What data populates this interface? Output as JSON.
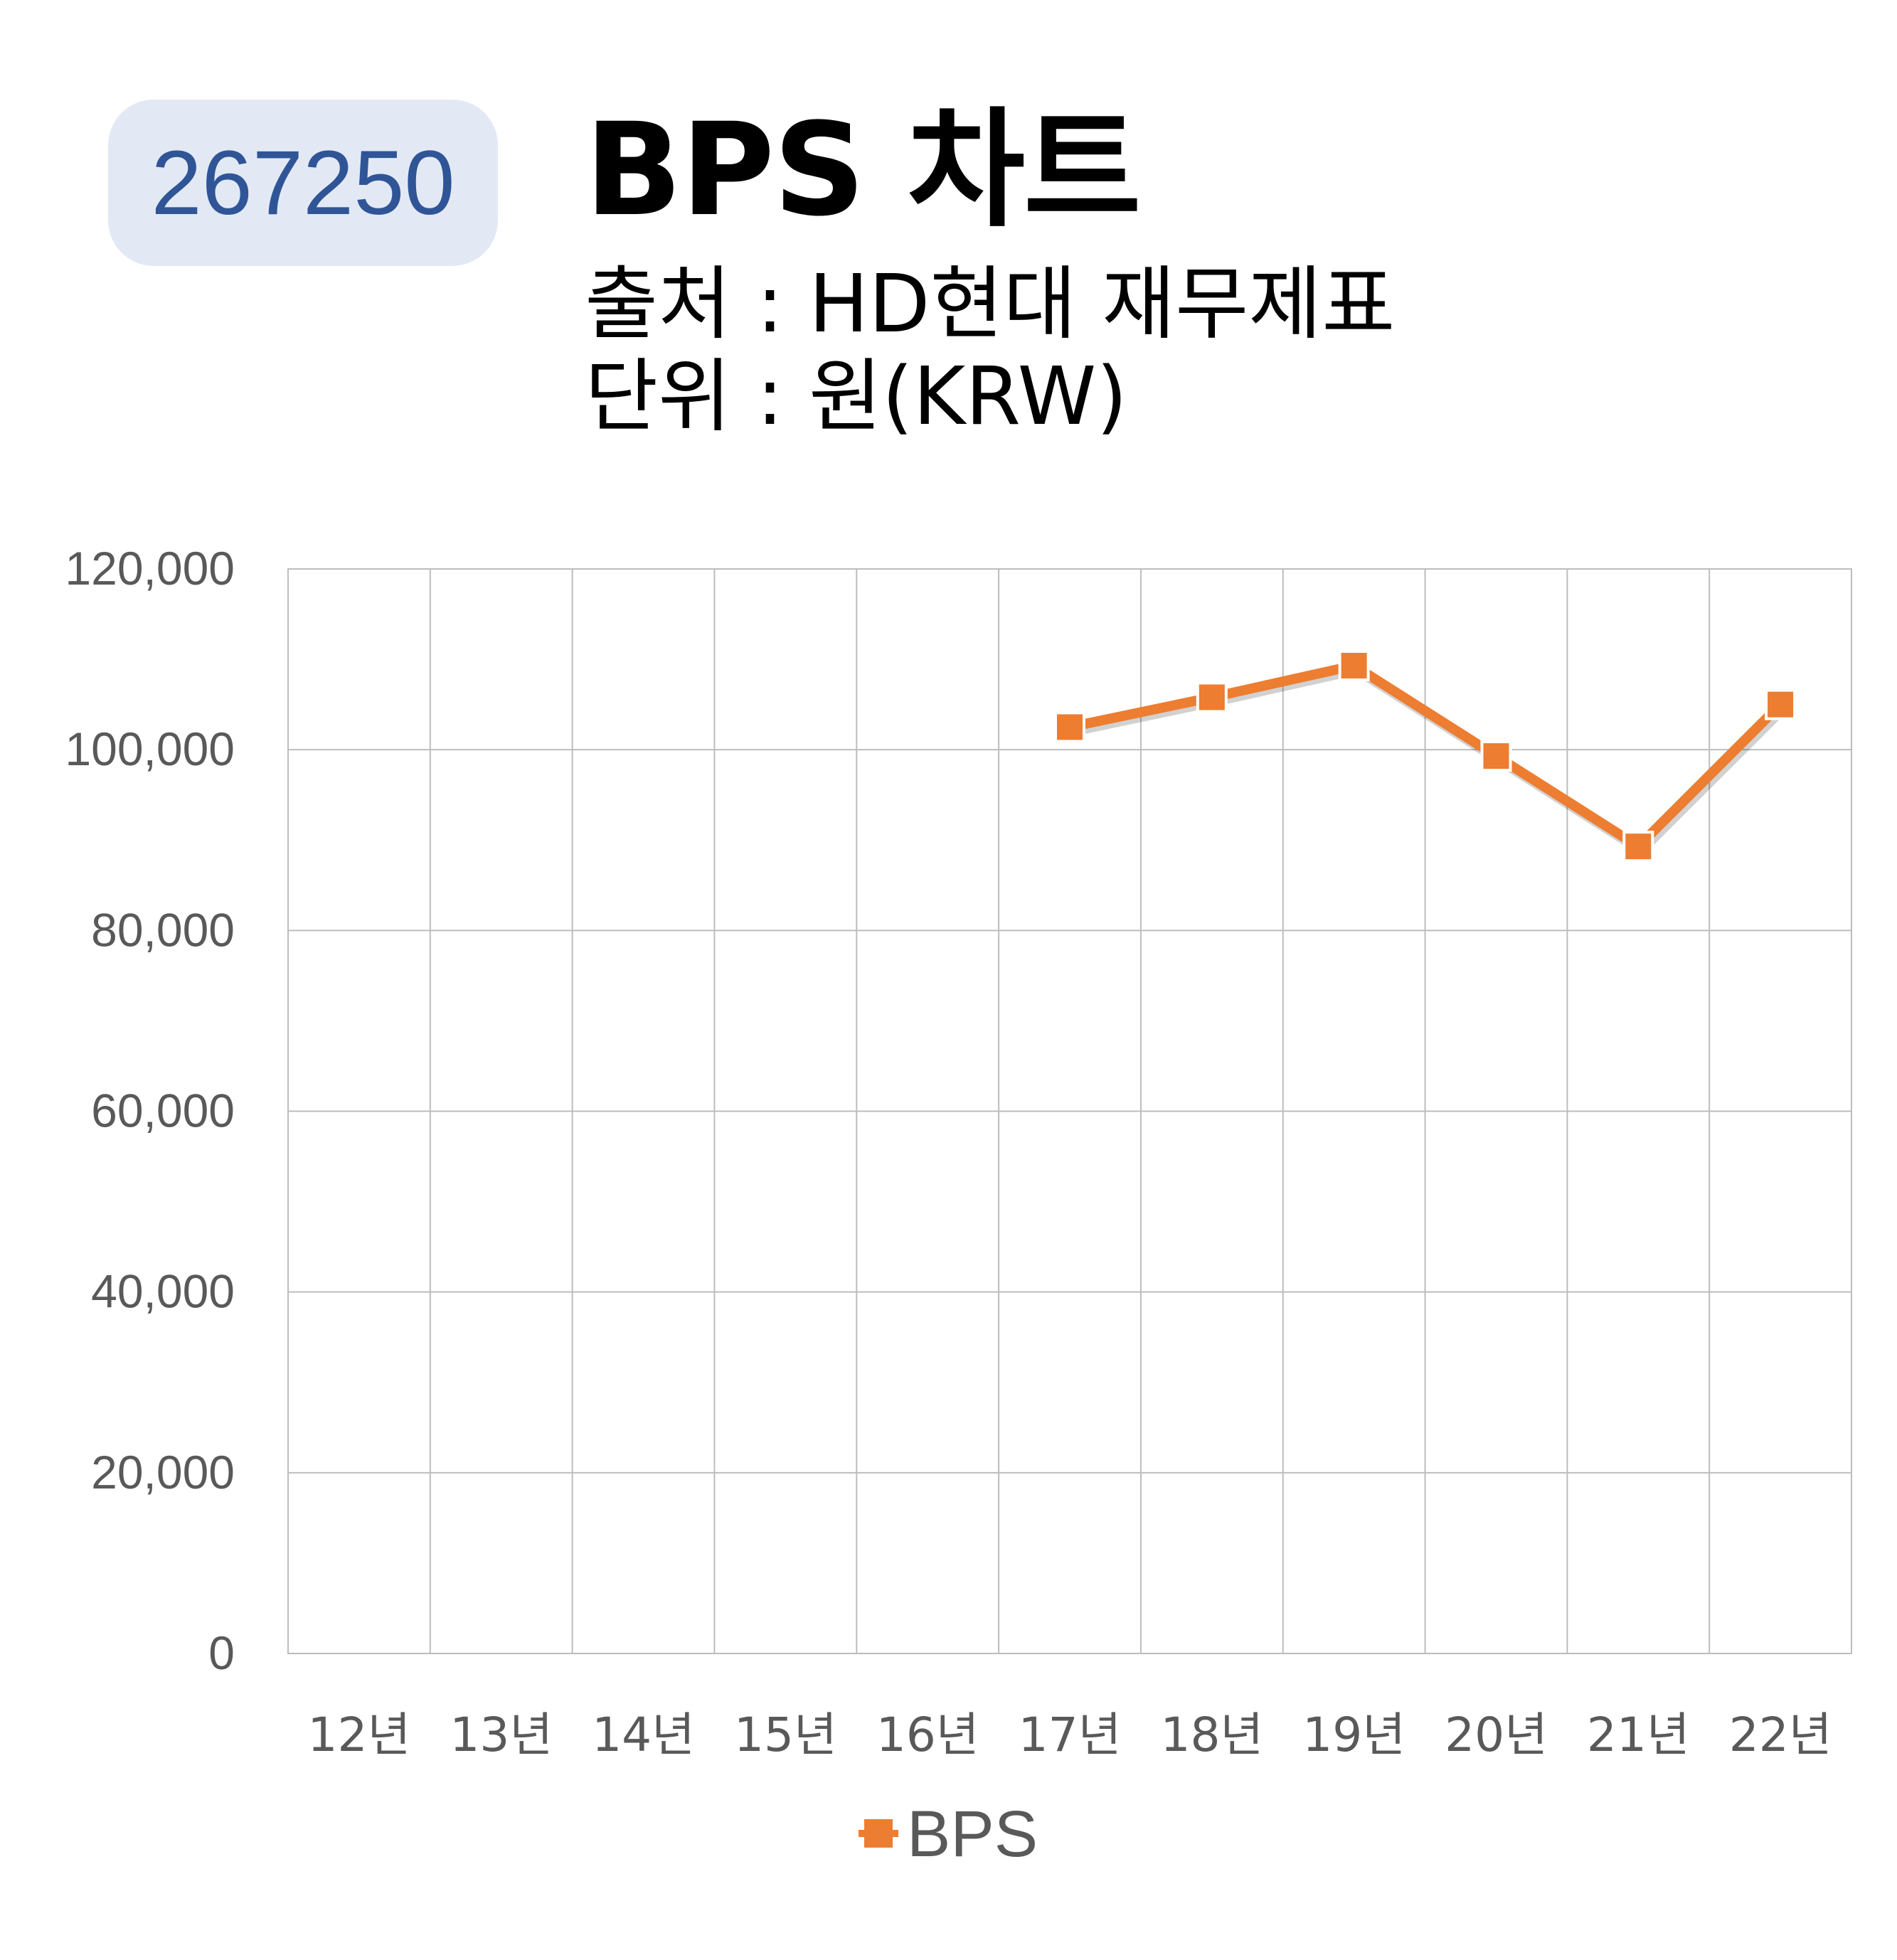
{
  "header": {
    "code": "267250",
    "title": "BPS 차트",
    "source": "출처 : HD현대 재무제표",
    "unit": "단위 : 원(KRW)"
  },
  "chart_data": {
    "type": "line",
    "categories": [
      "12년",
      "13년",
      "14년",
      "15년",
      "16년",
      "17년",
      "18년",
      "19년",
      "20년",
      "21년",
      "22년"
    ],
    "series": [
      {
        "name": "BPS",
        "color": "#ed7d31",
        "values": [
          null,
          null,
          null,
          null,
          null,
          102500,
          105800,
          109300,
          99300,
          89300,
          105000
        ]
      }
    ],
    "ylim": [
      0,
      120000
    ],
    "yticks": [
      0,
      20000,
      40000,
      60000,
      80000,
      100000,
      120000
    ],
    "ytick_labels": [
      "0",
      "20,000",
      "40,000",
      "60,000",
      "80,000",
      "100,000",
      "120,000"
    ],
    "grid": true,
    "legend": "bottom"
  }
}
